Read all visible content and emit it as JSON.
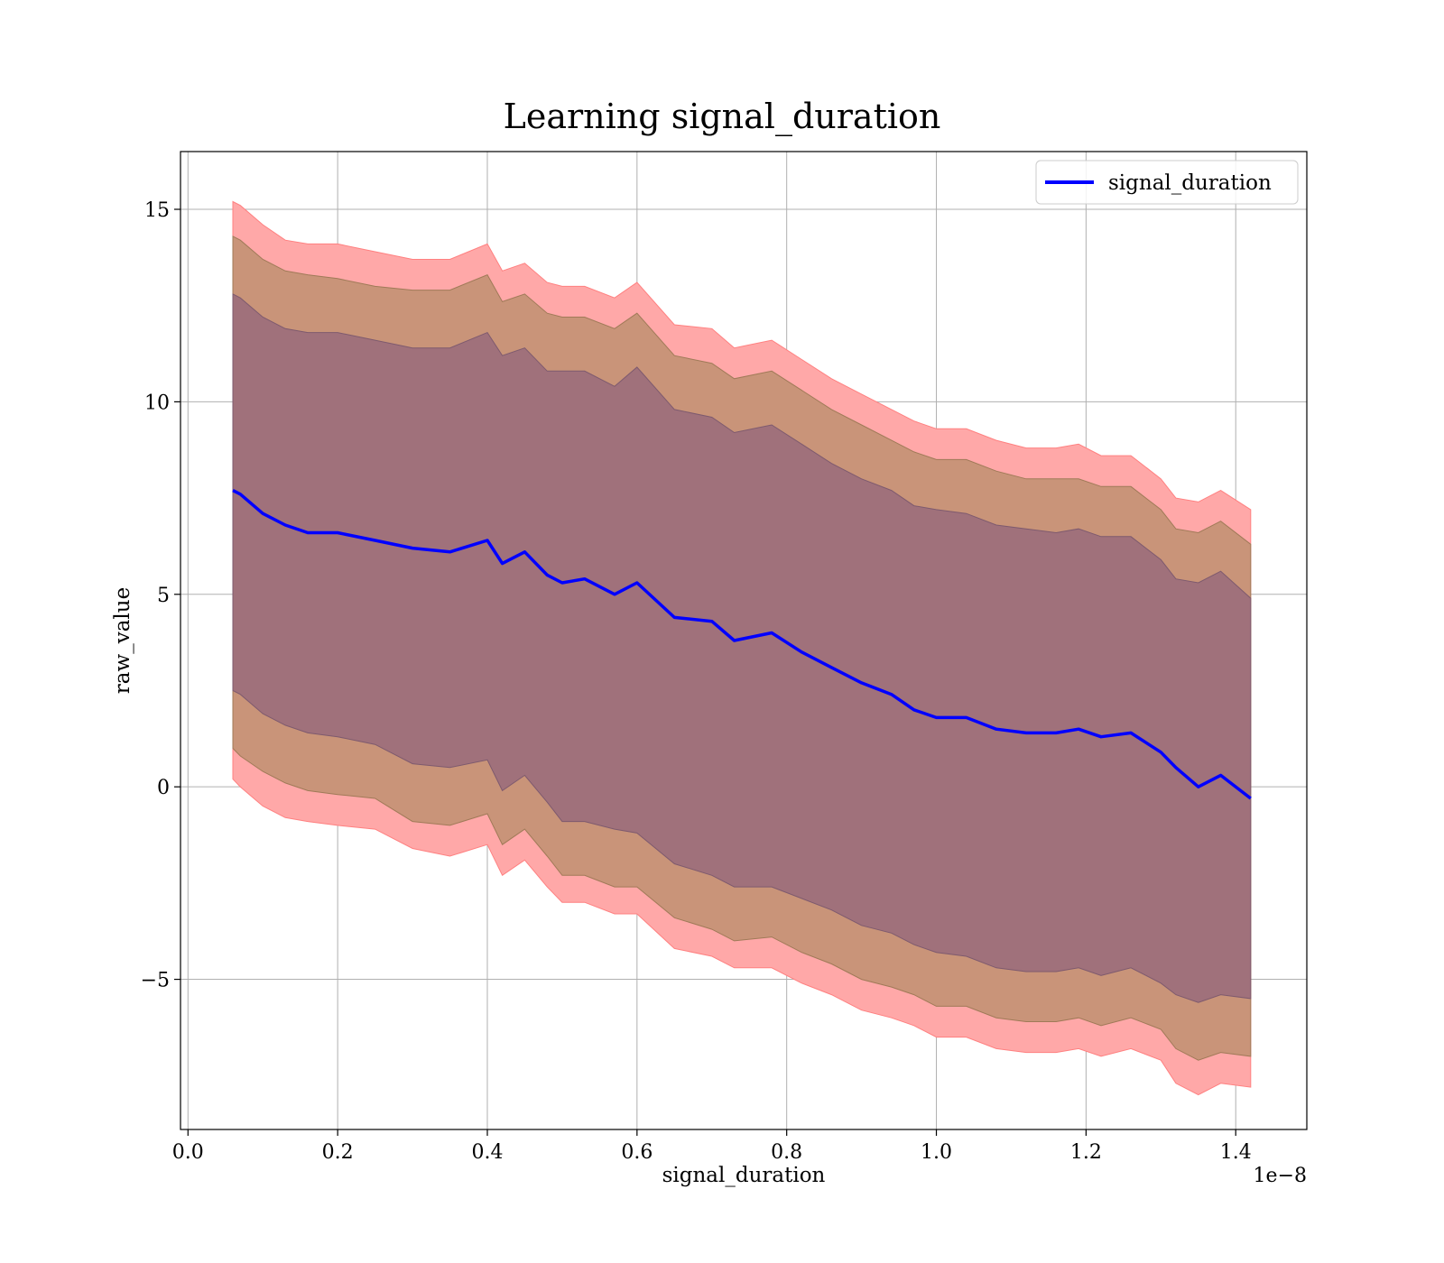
{
  "chart_data": {
    "type": "line",
    "title": "Learning signal_duration",
    "xlabel": "signal_duration",
    "ylabel": "raw_value",
    "x_offset_label": "1e−8",
    "xlim": [
      -0.01,
      1.495
    ],
    "ylim": [
      -8.9,
      16.5
    ],
    "x_ticks": [
      0.0,
      0.2,
      0.4,
      0.6,
      0.8,
      1.0,
      1.2,
      1.4
    ],
    "x_tick_labels": [
      "0.0",
      "0.2",
      "0.4",
      "0.6",
      "0.8",
      "1.0",
      "1.2",
      "1.4"
    ],
    "y_ticks": [
      -5,
      0,
      5,
      10,
      15
    ],
    "y_tick_labels": [
      "−5",
      "0",
      "5",
      "10",
      "15"
    ],
    "grid": true,
    "legend": {
      "position": "top-right",
      "entries": [
        "signal_duration"
      ]
    },
    "colors": {
      "line": "#0000ff",
      "band_outer": "#ffa8a8",
      "band_middle": "#c99479",
      "band_inner": "#a0717b",
      "grid": "#b0b0b0"
    },
    "series": [
      {
        "name": "signal_duration",
        "x": [
          0.06,
          0.07,
          0.1,
          0.13,
          0.16,
          0.2,
          0.25,
          0.3,
          0.35,
          0.4,
          0.42,
          0.45,
          0.48,
          0.5,
          0.53,
          0.57,
          0.6,
          0.65,
          0.7,
          0.73,
          0.78,
          0.82,
          0.86,
          0.9,
          0.94,
          0.97,
          1.0,
          1.04,
          1.08,
          1.12,
          1.16,
          1.19,
          1.22,
          1.26,
          1.3,
          1.32,
          1.35,
          1.38,
          1.42
        ],
        "y": [
          7.7,
          7.6,
          7.1,
          6.8,
          6.6,
          6.6,
          6.4,
          6.2,
          6.1,
          6.4,
          5.8,
          6.1,
          5.5,
          5.3,
          5.4,
          5.0,
          5.3,
          4.4,
          4.3,
          3.8,
          4.0,
          3.5,
          3.1,
          2.7,
          2.4,
          2.0,
          1.8,
          1.8,
          1.5,
          1.4,
          1.4,
          1.5,
          1.3,
          1.4,
          0.9,
          0.5,
          0.0,
          0.3,
          -0.3
        ],
        "band_1_lower": [
          2.5,
          2.4,
          1.9,
          1.6,
          1.4,
          1.3,
          1.1,
          0.6,
          0.5,
          0.7,
          -0.1,
          0.3,
          -0.4,
          -0.9,
          -0.9,
          -1.1,
          -1.2,
          -2.0,
          -2.3,
          -2.6,
          -2.6,
          -2.9,
          -3.2,
          -3.6,
          -3.8,
          -4.1,
          -4.3,
          -4.4,
          -4.7,
          -4.8,
          -4.8,
          -4.7,
          -4.9,
          -4.7,
          -5.1,
          -5.4,
          -5.6,
          -5.4,
          -5.5
        ],
        "band_1_upper": [
          12.8,
          12.7,
          12.2,
          11.9,
          11.8,
          11.8,
          11.6,
          11.4,
          11.4,
          11.8,
          11.2,
          11.4,
          10.8,
          10.8,
          10.8,
          10.4,
          10.9,
          9.8,
          9.6,
          9.2,
          9.4,
          8.9,
          8.4,
          8.0,
          7.7,
          7.3,
          7.2,
          7.1,
          6.8,
          6.7,
          6.6,
          6.7,
          6.5,
          6.5,
          5.9,
          5.4,
          5.3,
          5.6,
          4.9
        ],
        "band_2_lower": [
          1.0,
          0.8,
          0.4,
          0.1,
          -0.1,
          -0.2,
          -0.3,
          -0.9,
          -1.0,
          -0.7,
          -1.5,
          -1.1,
          -1.8,
          -2.3,
          -2.3,
          -2.6,
          -2.6,
          -3.4,
          -3.7,
          -4.0,
          -3.9,
          -4.3,
          -4.6,
          -5.0,
          -5.2,
          -5.4,
          -5.7,
          -5.7,
          -6.0,
          -6.1,
          -6.1,
          -6.0,
          -6.2,
          -6.0,
          -6.3,
          -6.8,
          -7.1,
          -6.9,
          -7.0
        ],
        "band_2_upper": [
          14.3,
          14.2,
          13.7,
          13.4,
          13.3,
          13.2,
          13.0,
          12.9,
          12.9,
          13.3,
          12.6,
          12.8,
          12.3,
          12.2,
          12.2,
          11.9,
          12.3,
          11.2,
          11.0,
          10.6,
          10.8,
          10.3,
          9.8,
          9.4,
          9.0,
          8.7,
          8.5,
          8.5,
          8.2,
          8.0,
          8.0,
          8.0,
          7.8,
          7.8,
          7.2,
          6.7,
          6.6,
          6.9,
          6.3
        ],
        "band_3_lower": [
          0.2,
          0.0,
          -0.5,
          -0.8,
          -0.9,
          -1.0,
          -1.1,
          -1.6,
          -1.8,
          -1.5,
          -2.3,
          -1.9,
          -2.6,
          -3.0,
          -3.0,
          -3.3,
          -3.3,
          -4.2,
          -4.4,
          -4.7,
          -4.7,
          -5.1,
          -5.4,
          -5.8,
          -6.0,
          -6.2,
          -6.5,
          -6.5,
          -6.8,
          -6.9,
          -6.9,
          -6.8,
          -7.0,
          -6.8,
          -7.1,
          -7.7,
          -8.0,
          -7.7,
          -7.8
        ],
        "band_3_upper": [
          15.2,
          15.1,
          14.6,
          14.2,
          14.1,
          14.1,
          13.9,
          13.7,
          13.7,
          14.1,
          13.4,
          13.6,
          13.1,
          13.0,
          13.0,
          12.7,
          13.1,
          12.0,
          11.9,
          11.4,
          11.6,
          11.1,
          10.6,
          10.2,
          9.8,
          9.5,
          9.3,
          9.3,
          9.0,
          8.8,
          8.8,
          8.9,
          8.6,
          8.6,
          8.0,
          7.5,
          7.4,
          7.7,
          7.2
        ]
      }
    ]
  }
}
